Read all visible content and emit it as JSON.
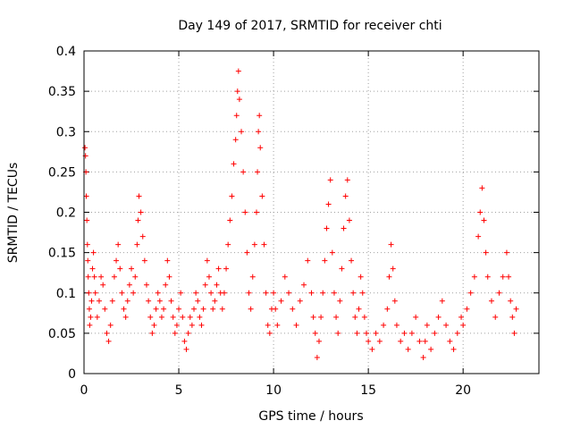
{
  "chart_data": {
    "type": "scatter",
    "title": "Day 149 of 2017, SRMTID for receiver chti",
    "xlabel": "GPS time / hours",
    "ylabel": "SRMTID / TECUs",
    "xlim": [
      0,
      24
    ],
    "ylim": [
      0,
      0.4
    ],
    "xticks": [
      0,
      5,
      10,
      15,
      20
    ],
    "yticks": [
      0,
      0.05,
      0.1,
      0.15,
      0.2,
      0.25,
      0.3,
      0.35,
      0.4
    ],
    "xtick_labels": [
      "0",
      "5",
      "10",
      "15",
      "20"
    ],
    "ytick_labels": [
      "0",
      "0.05",
      "0.1",
      "0.15",
      "0.2",
      "0.25",
      "0.3",
      "0.35",
      "0.4"
    ],
    "grid": true,
    "marker": "plus",
    "color": "#ff0000",
    "series": [
      {
        "points": [
          [
            0.05,
            0.28
          ],
          [
            0.08,
            0.27
          ],
          [
            0.1,
            0.25
          ],
          [
            0.12,
            0.22
          ],
          [
            0.15,
            0.19
          ],
          [
            0.18,
            0.16
          ],
          [
            0.2,
            0.14
          ],
          [
            0.22,
            0.12
          ],
          [
            0.25,
            0.1
          ],
          [
            0.28,
            0.08
          ],
          [
            0.3,
            0.06
          ],
          [
            0.35,
            0.07
          ],
          [
            0.4,
            0.09
          ],
          [
            0.45,
            0.13
          ],
          [
            0.5,
            0.15
          ],
          [
            0.55,
            0.12
          ],
          [
            0.6,
            0.1
          ],
          [
            0.7,
            0.07
          ],
          [
            0.8,
            0.09
          ],
          [
            0.9,
            0.12
          ],
          [
            1.0,
            0.11
          ],
          [
            1.1,
            0.08
          ],
          [
            1.2,
            0.05
          ],
          [
            1.3,
            0.04
          ],
          [
            1.4,
            0.06
          ],
          [
            1.5,
            0.09
          ],
          [
            1.6,
            0.12
          ],
          [
            1.7,
            0.14
          ],
          [
            1.8,
            0.16
          ],
          [
            1.9,
            0.13
          ],
          [
            2.0,
            0.1
          ],
          [
            2.1,
            0.08
          ],
          [
            2.2,
            0.07
          ],
          [
            2.3,
            0.09
          ],
          [
            2.4,
            0.11
          ],
          [
            2.5,
            0.13
          ],
          [
            2.6,
            0.1
          ],
          [
            2.7,
            0.12
          ],
          [
            2.8,
            0.16
          ],
          [
            2.85,
            0.19
          ],
          [
            2.9,
            0.22
          ],
          [
            3.0,
            0.2
          ],
          [
            3.1,
            0.17
          ],
          [
            3.2,
            0.14
          ],
          [
            3.3,
            0.11
          ],
          [
            3.4,
            0.09
          ],
          [
            3.5,
            0.07
          ],
          [
            3.6,
            0.05
          ],
          [
            3.7,
            0.06
          ],
          [
            3.8,
            0.08
          ],
          [
            3.9,
            0.1
          ],
          [
            4.0,
            0.09
          ],
          [
            4.1,
            0.07
          ],
          [
            4.2,
            0.08
          ],
          [
            4.3,
            0.11
          ],
          [
            4.4,
            0.14
          ],
          [
            4.5,
            0.12
          ],
          [
            4.6,
            0.09
          ],
          [
            4.7,
            0.07
          ],
          [
            4.8,
            0.05
          ],
          [
            4.9,
            0.06
          ],
          [
            5.0,
            0.08
          ],
          [
            5.1,
            0.1
          ],
          [
            5.2,
            0.07
          ],
          [
            5.3,
            0.04
          ],
          [
            5.4,
            0.03
          ],
          [
            5.5,
            0.05
          ],
          [
            5.6,
            0.07
          ],
          [
            5.7,
            0.06
          ],
          [
            5.8,
            0.08
          ],
          [
            5.9,
            0.1
          ],
          [
            6.0,
            0.09
          ],
          [
            6.1,
            0.07
          ],
          [
            6.2,
            0.06
          ],
          [
            6.3,
            0.08
          ],
          [
            6.4,
            0.11
          ],
          [
            6.5,
            0.14
          ],
          [
            6.6,
            0.12
          ],
          [
            6.7,
            0.1
          ],
          [
            6.8,
            0.08
          ],
          [
            6.9,
            0.09
          ],
          [
            7.0,
            0.11
          ],
          [
            7.1,
            0.13
          ],
          [
            7.2,
            0.1
          ],
          [
            7.3,
            0.08
          ],
          [
            7.4,
            0.1
          ],
          [
            7.5,
            0.13
          ],
          [
            7.6,
            0.16
          ],
          [
            7.7,
            0.19
          ],
          [
            7.8,
            0.22
          ],
          [
            7.9,
            0.26
          ],
          [
            8.0,
            0.29
          ],
          [
            8.05,
            0.32
          ],
          [
            8.1,
            0.35
          ],
          [
            8.15,
            0.375
          ],
          [
            8.2,
            0.34
          ],
          [
            8.3,
            0.3
          ],
          [
            8.4,
            0.25
          ],
          [
            8.5,
            0.2
          ],
          [
            8.6,
            0.15
          ],
          [
            8.7,
            0.1
          ],
          [
            8.8,
            0.08
          ],
          [
            8.9,
            0.12
          ],
          [
            9.0,
            0.16
          ],
          [
            9.1,
            0.2
          ],
          [
            9.15,
            0.25
          ],
          [
            9.2,
            0.3
          ],
          [
            9.25,
            0.32
          ],
          [
            9.3,
            0.28
          ],
          [
            9.4,
            0.22
          ],
          [
            9.5,
            0.16
          ],
          [
            9.6,
            0.1
          ],
          [
            9.7,
            0.06
          ],
          [
            9.8,
            0.05
          ],
          [
            9.9,
            0.08
          ],
          [
            10.0,
            0.1
          ],
          [
            10.1,
            0.08
          ],
          [
            10.2,
            0.06
          ],
          [
            10.4,
            0.09
          ],
          [
            10.6,
            0.12
          ],
          [
            10.8,
            0.1
          ],
          [
            11.0,
            0.08
          ],
          [
            11.2,
            0.06
          ],
          [
            11.4,
            0.09
          ],
          [
            11.6,
            0.11
          ],
          [
            11.8,
            0.14
          ],
          [
            12.0,
            0.1
          ],
          [
            12.1,
            0.07
          ],
          [
            12.2,
            0.05
          ],
          [
            12.3,
            0.02
          ],
          [
            12.4,
            0.04
          ],
          [
            12.5,
            0.07
          ],
          [
            12.6,
            0.1
          ],
          [
            12.7,
            0.14
          ],
          [
            12.8,
            0.18
          ],
          [
            12.9,
            0.21
          ],
          [
            13.0,
            0.24
          ],
          [
            13.1,
            0.15
          ],
          [
            13.2,
            0.1
          ],
          [
            13.3,
            0.07
          ],
          [
            13.4,
            0.05
          ],
          [
            13.5,
            0.09
          ],
          [
            13.6,
            0.13
          ],
          [
            13.7,
            0.18
          ],
          [
            13.8,
            0.22
          ],
          [
            13.9,
            0.24
          ],
          [
            14.0,
            0.19
          ],
          [
            14.1,
            0.14
          ],
          [
            14.2,
            0.1
          ],
          [
            14.3,
            0.07
          ],
          [
            14.4,
            0.05
          ],
          [
            14.5,
            0.08
          ],
          [
            14.6,
            0.12
          ],
          [
            14.7,
            0.1
          ],
          [
            14.8,
            0.07
          ],
          [
            14.9,
            0.05
          ],
          [
            15.0,
            0.04
          ],
          [
            15.2,
            0.03
          ],
          [
            15.4,
            0.05
          ],
          [
            15.6,
            0.04
          ],
          [
            15.8,
            0.06
          ],
          [
            16.0,
            0.08
          ],
          [
            16.1,
            0.12
          ],
          [
            16.2,
            0.16
          ],
          [
            16.3,
            0.13
          ],
          [
            16.4,
            0.09
          ],
          [
            16.5,
            0.06
          ],
          [
            16.7,
            0.04
          ],
          [
            16.9,
            0.05
          ],
          [
            17.1,
            0.03
          ],
          [
            17.3,
            0.05
          ],
          [
            17.5,
            0.07
          ],
          [
            17.7,
            0.04
          ],
          [
            17.9,
            0.02
          ],
          [
            18.0,
            0.04
          ],
          [
            18.1,
            0.06
          ],
          [
            18.3,
            0.03
          ],
          [
            18.5,
            0.05
          ],
          [
            18.7,
            0.07
          ],
          [
            18.9,
            0.09
          ],
          [
            19.1,
            0.06
          ],
          [
            19.3,
            0.04
          ],
          [
            19.5,
            0.03
          ],
          [
            19.7,
            0.05
          ],
          [
            19.9,
            0.07
          ],
          [
            20.0,
            0.06
          ],
          [
            20.2,
            0.08
          ],
          [
            20.4,
            0.1
          ],
          [
            20.6,
            0.12
          ],
          [
            20.8,
            0.17
          ],
          [
            20.9,
            0.2
          ],
          [
            21.0,
            0.23
          ],
          [
            21.1,
            0.19
          ],
          [
            21.2,
            0.15
          ],
          [
            21.3,
            0.12
          ],
          [
            21.5,
            0.09
          ],
          [
            21.7,
            0.07
          ],
          [
            21.9,
            0.1
          ],
          [
            22.1,
            0.12
          ],
          [
            22.3,
            0.15
          ],
          [
            22.4,
            0.12
          ],
          [
            22.5,
            0.09
          ],
          [
            22.6,
            0.07
          ],
          [
            22.7,
            0.05
          ],
          [
            22.8,
            0.08
          ]
        ]
      }
    ]
  }
}
